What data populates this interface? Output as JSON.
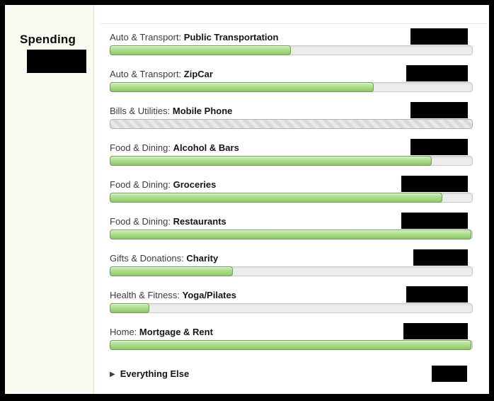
{
  "sidebar": {
    "title": "Spending"
  },
  "main": {
    "budgets": [
      {
        "category": "Auto & Transport:",
        "name": "Public Transportation",
        "fill_pct": 50,
        "bar_style": "normal",
        "redaction_w": 81
      },
      {
        "category": "Auto & Transport:",
        "name": "ZipCar",
        "fill_pct": 73,
        "bar_style": "normal",
        "redaction_w": 87
      },
      {
        "category": "Bills & Utilities:",
        "name": "Mobile Phone",
        "fill_pct": 100,
        "bar_style": "striped",
        "redaction_w": 81
      },
      {
        "category": "Food & Dining:",
        "name": "Alcohol & Bars",
        "fill_pct": 89,
        "bar_style": "normal",
        "redaction_w": 81
      },
      {
        "category": "Food & Dining:",
        "name": "Groceries",
        "fill_pct": 92,
        "bar_style": "normal",
        "redaction_w": 94
      },
      {
        "category": "Food & Dining:",
        "name": "Restaurants",
        "fill_pct": 100,
        "bar_style": "normal",
        "redaction_w": 94
      },
      {
        "category": "Gifts & Donations:",
        "name": "Charity",
        "fill_pct": 34,
        "bar_style": "normal",
        "redaction_w": 77
      },
      {
        "category": "Health & Fitness:",
        "name": "Yoga/Pilates",
        "fill_pct": 11,
        "bar_style": "normal",
        "redaction_w": 87
      },
      {
        "category": "Home:",
        "name": "Mortgage & Rent",
        "fill_pct": 100,
        "bar_style": "normal",
        "redaction_w": 91
      }
    ],
    "everything_else": {
      "arrow": "▶",
      "label": "Everything Else",
      "redaction_w": 50
    }
  },
  "colors": {
    "bar_fill_green": "#8cc967",
    "bar_border_green": "#6ba14c",
    "track_gray": "#ececec",
    "striped_gray": "#d9d9d9",
    "sidebar_bg": "#fafaf1",
    "redaction_black": "#000000"
  }
}
